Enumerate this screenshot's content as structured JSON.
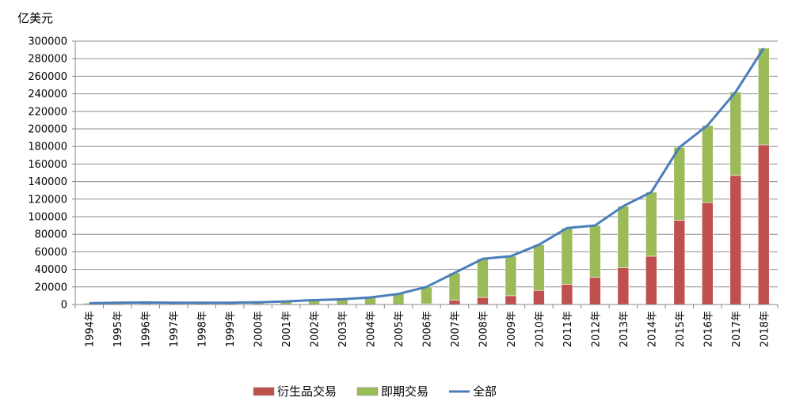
{
  "chart_data": {
    "type": "bar",
    "stacked": true,
    "unit_label": "亿美元",
    "categories": [
      "1994年",
      "1995年",
      "1996年",
      "1997年",
      "1998年",
      "1999年",
      "2000年",
      "2001年",
      "2002年",
      "2003年",
      "2004年",
      "2005年",
      "2006年",
      "2007年",
      "2008年",
      "2009年",
      "2010年",
      "2011年",
      "2012年",
      "2013年",
      "2014年",
      "2015年",
      "2016年",
      "2017年",
      "2018年"
    ],
    "series": [
      {
        "name": "衍生品交易",
        "type": "bar",
        "color": "#c0504d",
        "values": [
          0,
          0,
          0,
          0,
          0,
          0,
          0,
          0,
          0,
          0,
          0,
          200,
          800,
          5000,
          8000,
          10000,
          16000,
          23000,
          31000,
          42000,
          55000,
          96000,
          116000,
          147000,
          182000
        ]
      },
      {
        "name": "即期交易",
        "type": "bar",
        "color": "#9bbb59",
        "values": [
          1500,
          2000,
          2200,
          2000,
          2000,
          2000,
          2500,
          3500,
          5000,
          6000,
          8000,
          11800,
          19200,
          31000,
          44000,
          45000,
          52000,
          64000,
          59000,
          70000,
          73000,
          83000,
          88000,
          95000,
          110000
        ]
      },
      {
        "name": "全部",
        "type": "line",
        "color": "#4a7ebb",
        "values": [
          1500,
          2000,
          2200,
          2000,
          2000,
          2000,
          2500,
          3500,
          5000,
          6000,
          8000,
          12000,
          20000,
          36000,
          52000,
          55000,
          68000,
          87000,
          90000,
          112000,
          128000,
          179000,
          204000,
          242000,
          292000
        ]
      }
    ],
    "ylim": [
      0,
      300000
    ],
    "yticks": [
      0,
      20000,
      40000,
      60000,
      80000,
      100000,
      120000,
      140000,
      160000,
      180000,
      200000,
      220000,
      240000,
      260000,
      280000,
      300000
    ],
    "grid": true,
    "legend_position": "bottom"
  }
}
